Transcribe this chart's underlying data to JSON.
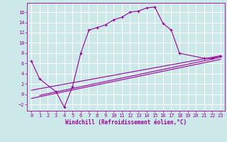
{
  "xlabel": "Windchill (Refroidissement éolien,°C)",
  "bg_color": "#cce8e8",
  "grid_color": "#ffffff",
  "line_color": "#990099",
  "xlim": [
    -0.5,
    23.5
  ],
  "ylim": [
    -3.2,
    17.8
  ],
  "xticks": [
    0,
    1,
    2,
    3,
    4,
    5,
    6,
    7,
    8,
    9,
    10,
    11,
    12,
    13,
    14,
    15,
    16,
    17,
    18,
    19,
    20,
    21,
    22,
    23
  ],
  "yticks": [
    -2,
    0,
    2,
    4,
    6,
    8,
    10,
    12,
    14,
    16
  ],
  "main_x": [
    0,
    1,
    3,
    4,
    5,
    6,
    7,
    8,
    9,
    10,
    11,
    12,
    13,
    14,
    15,
    16,
    17,
    18,
    21,
    22,
    23
  ],
  "main_y": [
    6.5,
    3.0,
    0.5,
    -2.5,
    1.5,
    8.0,
    12.5,
    13.0,
    13.5,
    14.5,
    15.0,
    16.0,
    16.2,
    16.8,
    17.0,
    13.8,
    12.5,
    8.0,
    7.0,
    7.0,
    7.5
  ],
  "line1_x": [
    0,
    23
  ],
  "line1_y": [
    -0.8,
    6.8
  ],
  "line2_x": [
    0,
    23
  ],
  "line2_y": [
    0.8,
    7.5
  ],
  "line3_x": [
    1,
    23
  ],
  "line3_y": [
    -0.2,
    7.2
  ]
}
